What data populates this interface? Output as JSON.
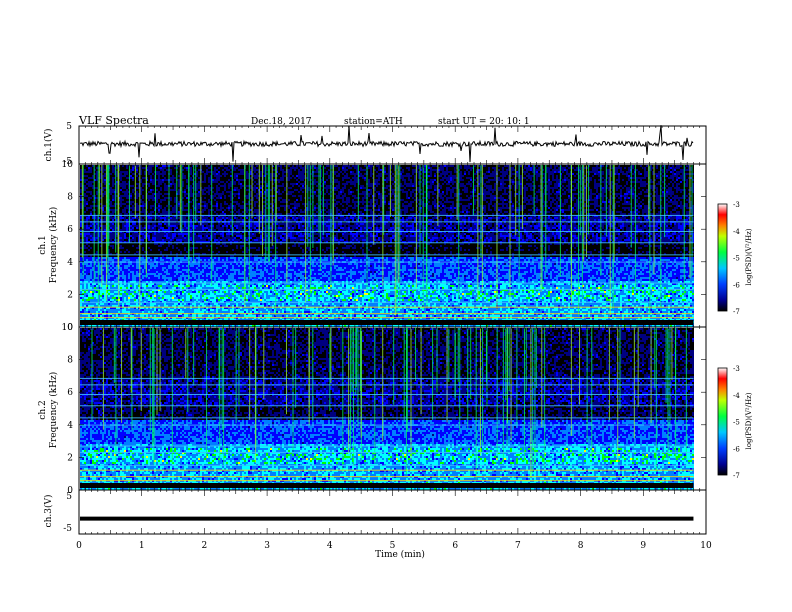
{
  "header": {
    "title": "VLF  Spectra",
    "date": "Dec.18, 2017",
    "station": "station=ATH",
    "start_ut": "start  UT  =   20: 10: 1"
  },
  "chart_data": [
    {
      "type": "line",
      "id": "ch1-waveform",
      "ylabel": "ch.1(V)",
      "ylim": [
        -5,
        5
      ],
      "yticks": [
        "5",
        "-5"
      ],
      "level": 0.3,
      "xlim": [
        0,
        10
      ]
    },
    {
      "type": "heatmap",
      "id": "ch1-spectrogram",
      "ylabel": "ch.1\nFrequency (kHz)",
      "ylim": [
        0,
        10
      ],
      "yticks": [
        "0",
        "2",
        "4",
        "6",
        "8",
        "10"
      ],
      "xlim": [
        0,
        9.8
      ],
      "colorbar": {
        "label": "log(PSD)(V²/Hz)",
        "range": [
          -7,
          -3
        ],
        "ticks": [
          "-3",
          "-4",
          "-5",
          "-6",
          "-7"
        ]
      }
    },
    {
      "type": "heatmap",
      "id": "ch2-spectrogram",
      "ylabel": "ch.2\nFrequency (kHz)",
      "ylim": [
        0,
        10
      ],
      "yticks": [
        "0",
        "2",
        "4",
        "6",
        "8",
        "10"
      ],
      "xlim": [
        0,
        9.8
      ],
      "colorbar": {
        "label": "log(PSD)(V²/Hz)",
        "range": [
          -7,
          -3
        ],
        "ticks": [
          "-3",
          "-4",
          "-5",
          "-6",
          "-7"
        ]
      }
    },
    {
      "type": "line",
      "id": "ch3-waveform",
      "ylabel": "ch.3(V)",
      "ylim": [
        -5,
        5
      ],
      "yticks": [
        "5",
        "-5"
      ],
      "level": -1.5,
      "xlim": [
        0,
        10
      ]
    }
  ],
  "xaxis": {
    "label": "Time  (min)",
    "ticks": [
      "0",
      "1",
      "2",
      "3",
      "4",
      "5",
      "6",
      "7",
      "8",
      "9",
      "10"
    ],
    "range": [
      0,
      10
    ]
  },
  "colors": {
    "colormap": [
      "#000000",
      "#000080",
      "#0000ff",
      "#0080ff",
      "#00ffff",
      "#00ff00",
      "#ffff00",
      "#ff8000",
      "#ff0000",
      "#ffffff"
    ]
  }
}
